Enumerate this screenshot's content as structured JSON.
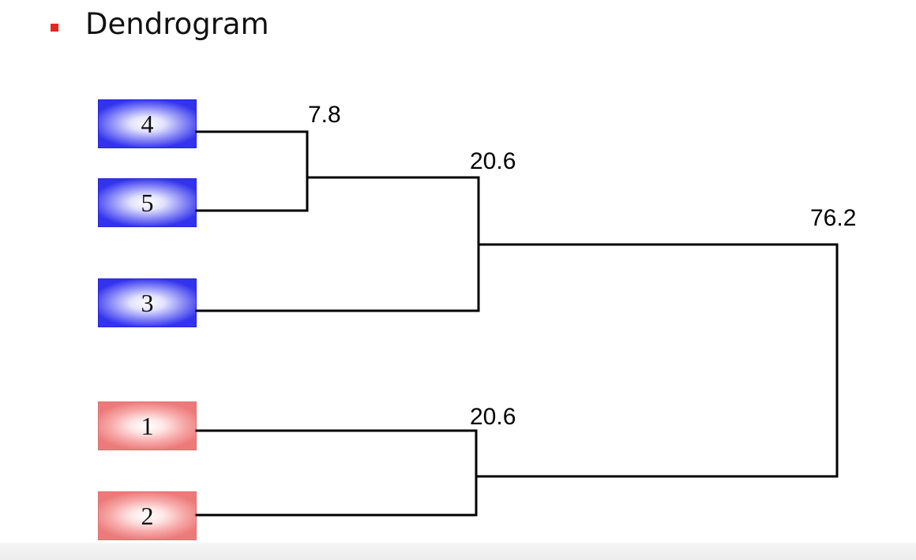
{
  "slide": {
    "bullet_color": "#e8271c",
    "heading": "Dendrogram"
  },
  "leaves": [
    {
      "label": "4",
      "cluster": "blue"
    },
    {
      "label": "5",
      "cluster": "blue"
    },
    {
      "label": "3",
      "cluster": "blue"
    },
    {
      "label": "1",
      "cluster": "red"
    },
    {
      "label": "2",
      "cluster": "red"
    }
  ],
  "merges": [
    {
      "members": [
        "4",
        "5"
      ],
      "height": 7.8,
      "label": "7.8"
    },
    {
      "members": [
        "4-5",
        "3"
      ],
      "height": 20.6,
      "label": "20.6"
    },
    {
      "members": [
        "1",
        "2"
      ],
      "height": 20.6,
      "label": "20.6"
    },
    {
      "members": [
        "3-4-5",
        "1-2"
      ],
      "height": 76.2,
      "label": "76.2"
    }
  ],
  "colors": {
    "blue_cluster": "#3333ee",
    "red_cluster": "#ec7a7a",
    "links": "#000000"
  }
}
